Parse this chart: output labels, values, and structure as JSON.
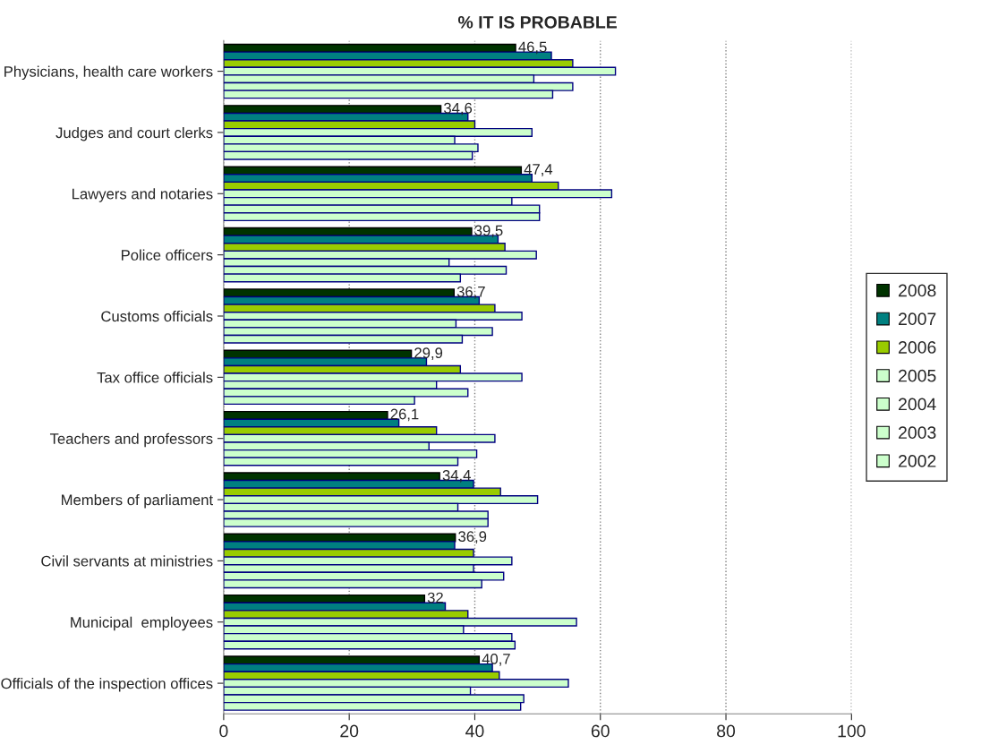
{
  "chart_data": {
    "type": "bar",
    "orientation": "horizontal",
    "title": "% IT IS PROBABLE",
    "categories": [
      "Physicians, health care workers",
      "Judges and court clerks",
      "Lawyers and notaries",
      "Police officers",
      "Customs officials",
      "Tax office officials",
      "Teachers and professors",
      "Members of parliament",
      "Civil servants at ministries",
      "Municipal  employees",
      "Officials of the inspection offices"
    ],
    "series": [
      {
        "name": "2008",
        "color": "#003300",
        "values": [
          46.5,
          34.6,
          47.4,
          39.5,
          36.7,
          29.9,
          26.1,
          34.4,
          36.9,
          32,
          40.7
        ],
        "value_labels": [
          "46,5",
          "34,6",
          "47,4",
          "39,5",
          "36,7",
          "29,9",
          "26,1",
          "34,4",
          "36,9",
          "32",
          "40,7"
        ]
      },
      {
        "name": "2007",
        "color": "#008080",
        "values": [
          52.2,
          38.9,
          49.1,
          43.7,
          40.7,
          32.3,
          27.9,
          39.8,
          36.8,
          35.3,
          42.8
        ]
      },
      {
        "name": "2006",
        "color": "#99cc00",
        "values": [
          55.6,
          40.0,
          53.3,
          44.8,
          43.2,
          37.7,
          33.9,
          44.1,
          39.8,
          38.9,
          43.9
        ]
      },
      {
        "name": "2005",
        "color": "#ccffcc",
        "values": [
          62.4,
          49.1,
          61.8,
          49.8,
          47.5,
          47.5,
          43.2,
          50.0,
          45.9,
          56.2,
          54.9
        ]
      },
      {
        "name": "2004",
        "color": "#ccffcc",
        "values": [
          49.4,
          36.8,
          45.9,
          35.9,
          37.0,
          33.9,
          32.7,
          37.3,
          39.8,
          38.2,
          39.3
        ]
      },
      {
        "name": "2003",
        "color": "#ccffcc",
        "values": [
          55.6,
          40.5,
          50.3,
          45.0,
          42.8,
          38.9,
          40.3,
          42.1,
          44.6,
          45.9,
          47.8
        ]
      },
      {
        "name": "2002",
        "color": "#ccffcc",
        "values": [
          52.4,
          39.6,
          50.3,
          37.7,
          38.0,
          30.4,
          37.3,
          42.1,
          41.1,
          46.4,
          47.3
        ]
      }
    ],
    "xlim": [
      0,
      100
    ],
    "xticks": [
      0,
      20,
      40,
      60,
      80,
      100
    ],
    "grid": "x",
    "legend": "right"
  }
}
